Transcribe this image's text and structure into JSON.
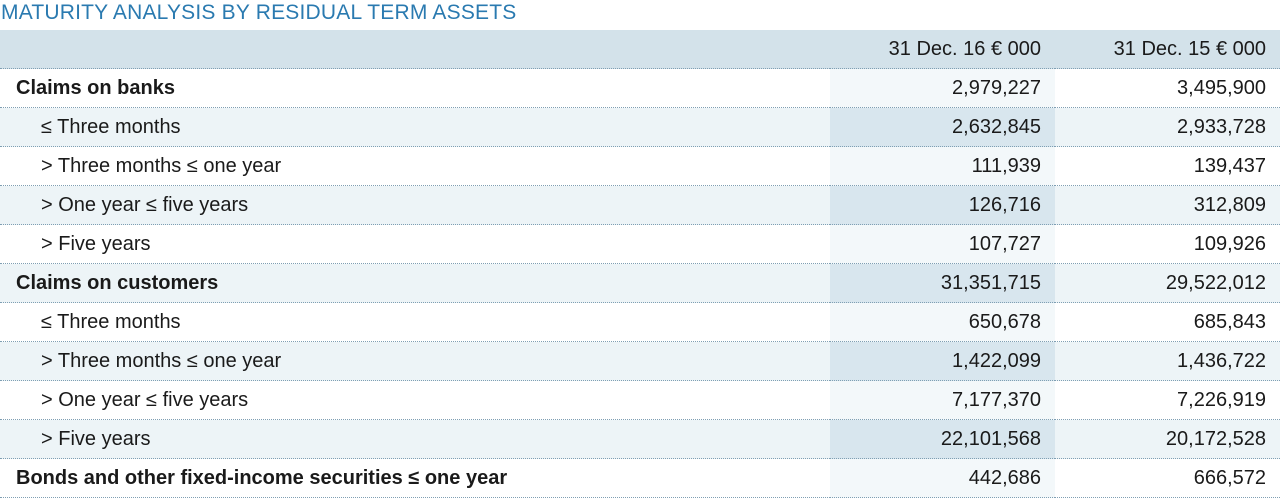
{
  "title": "MATURITY ANALYSIS BY RESIDUAL TERM ASSETS",
  "header": {
    "label": "",
    "col1": "31 Dec. 16 € 000",
    "col2": "31 Dec. 15 € 000"
  },
  "rows": [
    {
      "label": "Claims on banks",
      "v1": "2,979,227",
      "v2": "3,495,900"
    },
    {
      "label": "≤ Three months",
      "v1": "2,632,845",
      "v2": "2,933,728"
    },
    {
      "label": "> Three months ≤ one year",
      "v1": "111,939",
      "v2": "139,437"
    },
    {
      "label": "> One year ≤ five years",
      "v1": "126,716",
      "v2": "312,809"
    },
    {
      "label": "> Five years",
      "v1": "107,727",
      "v2": "109,926"
    },
    {
      "label": "Claims on customers",
      "v1": "31,351,715",
      "v2": "29,522,012"
    },
    {
      "label": "≤ Three months",
      "v1": "650,678",
      "v2": "685,843"
    },
    {
      "label": "> Three months ≤ one year",
      "v1": "1,422,099",
      "v2": "1,436,722"
    },
    {
      "label": "> One year ≤ five years",
      "v1": "7,177,370",
      "v2": "7,226,919"
    },
    {
      "label": "> Five years",
      "v1": "22,101,568",
      "v2": "20,172,528"
    },
    {
      "label": "Bonds and other fixed-income securities ≤ one year",
      "v1": "442,686",
      "v2": "666,572"
    }
  ],
  "colors": {
    "title": "#2a7ab0",
    "header_bg": "#d3e2ea",
    "shade_bg": "#edf4f7",
    "shade_col1_bg": "#d8e6ee"
  }
}
